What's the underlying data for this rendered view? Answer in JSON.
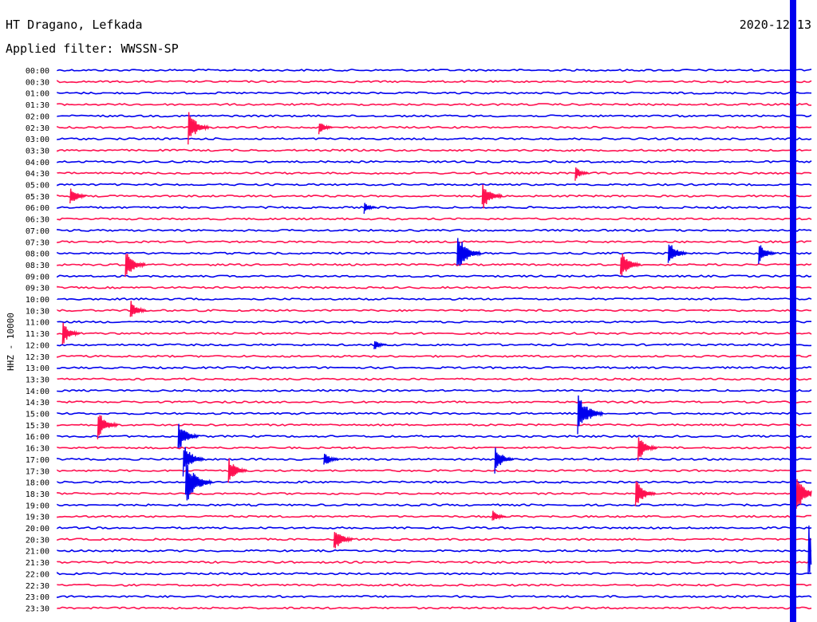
{
  "header": {
    "station": "HT Dragano, Lefkada",
    "date": "2020-12-13",
    "filter": "Applied filter: WWSSN-SP"
  },
  "chart_data": {
    "type": "line",
    "channel_label": "HHZ - 10000",
    "row_labels": [
      "00:00",
      "00:30",
      "01:00",
      "01:30",
      "02:00",
      "02:30",
      "03:00",
      "03:30",
      "04:00",
      "04:30",
      "05:00",
      "05:30",
      "06:00",
      "06:30",
      "07:00",
      "07:30",
      "08:00",
      "08:30",
      "09:00",
      "09:30",
      "10:00",
      "10:30",
      "11:00",
      "11:30",
      "12:00",
      "12:30",
      "13:00",
      "13:30",
      "14:00",
      "14:30",
      "15:00",
      "15:30",
      "16:00",
      "16:30",
      "17:00",
      "17:30",
      "18:00",
      "18:30",
      "19:00",
      "19:30",
      "20:00",
      "20:30",
      "21:00",
      "21:30",
      "22:00",
      "22:30",
      "23:00",
      "23:30"
    ],
    "row_colors": [
      "#0000ee",
      "#ff1050"
    ],
    "x_range_minutes": [
      0,
      30
    ],
    "events": [
      {
        "row": "02:30",
        "minute": 5.2,
        "amp": 22
      },
      {
        "row": "02:30",
        "minute": 10.4,
        "amp": 10
      },
      {
        "row": "04:30",
        "minute": 20.6,
        "amp": 10
      },
      {
        "row": "05:30",
        "minute": 0.5,
        "amp": 14
      },
      {
        "row": "05:30",
        "minute": 16.9,
        "amp": 20
      },
      {
        "row": "06:00",
        "minute": 12.2,
        "amp": 8
      },
      {
        "row": "08:00",
        "minute": 15.9,
        "amp": 26
      },
      {
        "row": "08:00",
        "minute": 24.3,
        "amp": 18
      },
      {
        "row": "08:00",
        "minute": 27.9,
        "amp": 16
      },
      {
        "row": "08:30",
        "minute": 2.7,
        "amp": 20
      },
      {
        "row": "08:30",
        "minute": 22.4,
        "amp": 20
      },
      {
        "row": "10:30",
        "minute": 2.9,
        "amp": 14
      },
      {
        "row": "11:30",
        "minute": 0.2,
        "amp": 16
      },
      {
        "row": "12:00",
        "minute": 12.6,
        "amp": 8
      },
      {
        "row": "15:00",
        "minute": 20.7,
        "amp": 28
      },
      {
        "row": "15:30",
        "minute": 1.6,
        "amp": 20
      },
      {
        "row": "16:00",
        "minute": 4.8,
        "amp": 20
      },
      {
        "row": "16:30",
        "minute": 23.1,
        "amp": 18
      },
      {
        "row": "17:00",
        "minute": 5.0,
        "amp": 22
      },
      {
        "row": "17:00",
        "minute": 10.6,
        "amp": 12
      },
      {
        "row": "17:00",
        "minute": 17.4,
        "amp": 18
      },
      {
        "row": "17:30",
        "minute": 6.8,
        "amp": 18
      },
      {
        "row": "18:00",
        "minute": 5.1,
        "amp": 30
      },
      {
        "row": "18:30",
        "minute": 23.0,
        "amp": 20
      },
      {
        "row": "18:30",
        "minute": 29.4,
        "amp": 24
      },
      {
        "row": "19:30",
        "minute": 17.3,
        "amp": 10
      },
      {
        "row": "20:30",
        "minute": 11.0,
        "amp": 18
      },
      {
        "row": "21:00",
        "minute": 30.0,
        "amp": 34
      }
    ]
  }
}
